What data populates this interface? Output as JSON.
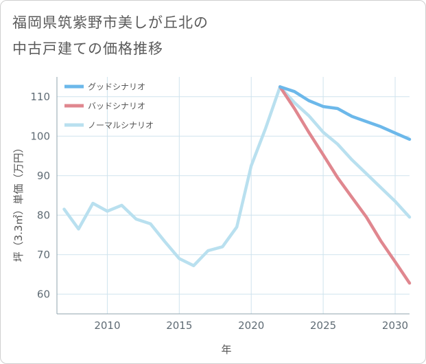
{
  "title_lines": [
    "福岡県筑紫野市美しが丘北の",
    "中古戸建ての価格推移"
  ],
  "chart_data": {
    "type": "line",
    "title": "福岡県筑紫野市美しが丘北の中古戸建ての価格推移",
    "xlabel": "年",
    "ylabel": "坪（3.3㎡）単価（万円）",
    "xlim": [
      2006.5,
      2031
    ],
    "ylim": [
      55,
      115
    ],
    "xticks": [
      2010,
      2015,
      2020,
      2025,
      2030
    ],
    "yticks": [
      60,
      70,
      80,
      90,
      100,
      110
    ],
    "grid": true,
    "legend_position": "top-left",
    "series": [
      {
        "name": "グッドシナリオ",
        "color": "#6cb8ea",
        "x": [
          2022,
          2023,
          2024,
          2025,
          2026,
          2027,
          2028,
          2029,
          2030,
          2031
        ],
        "y": [
          112.5,
          111.3,
          109,
          107.5,
          107,
          105,
          103.7,
          102.4,
          100.8,
          99.2
        ]
      },
      {
        "name": "バッドシナリオ",
        "color": "#e0878f",
        "x": [
          2022,
          2023,
          2024,
          2025,
          2026,
          2027,
          2028,
          2029,
          2030,
          2031
        ],
        "y": [
          112.5,
          107,
          101,
          95.3,
          89.5,
          84.5,
          79.5,
          73.5,
          68.2,
          62.8
        ]
      },
      {
        "name": "ノーマルシナリオ",
        "color": "#b9e0ef",
        "x": [
          2007,
          2008,
          2009,
          2010,
          2011,
          2012,
          2013,
          2014,
          2015,
          2016,
          2017,
          2018,
          2019,
          2020,
          2021,
          2022,
          2023,
          2024,
          2025,
          2026,
          2027,
          2028,
          2029,
          2030,
          2031
        ],
        "y": [
          81.5,
          76.5,
          83,
          81,
          82.5,
          79,
          77.8,
          73.3,
          69,
          67.2,
          71,
          72,
          77,
          92.5,
          102,
          112.5,
          108.5,
          105.2,
          101,
          98,
          94,
          90.5,
          87,
          83.5,
          79.5
        ]
      }
    ]
  }
}
